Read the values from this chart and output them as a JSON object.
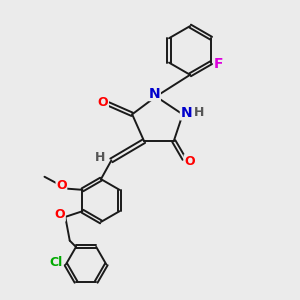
{
  "bg_color": "#ebebeb",
  "bond_color": "#1a1a1a",
  "atom_colors": {
    "O": "#ff0000",
    "N": "#0000cc",
    "F": "#dd00dd",
    "Cl": "#00aa00",
    "H": "#555555",
    "C": "#1a1a1a"
  },
  "font_size": 8,
  "line_width": 1.4
}
